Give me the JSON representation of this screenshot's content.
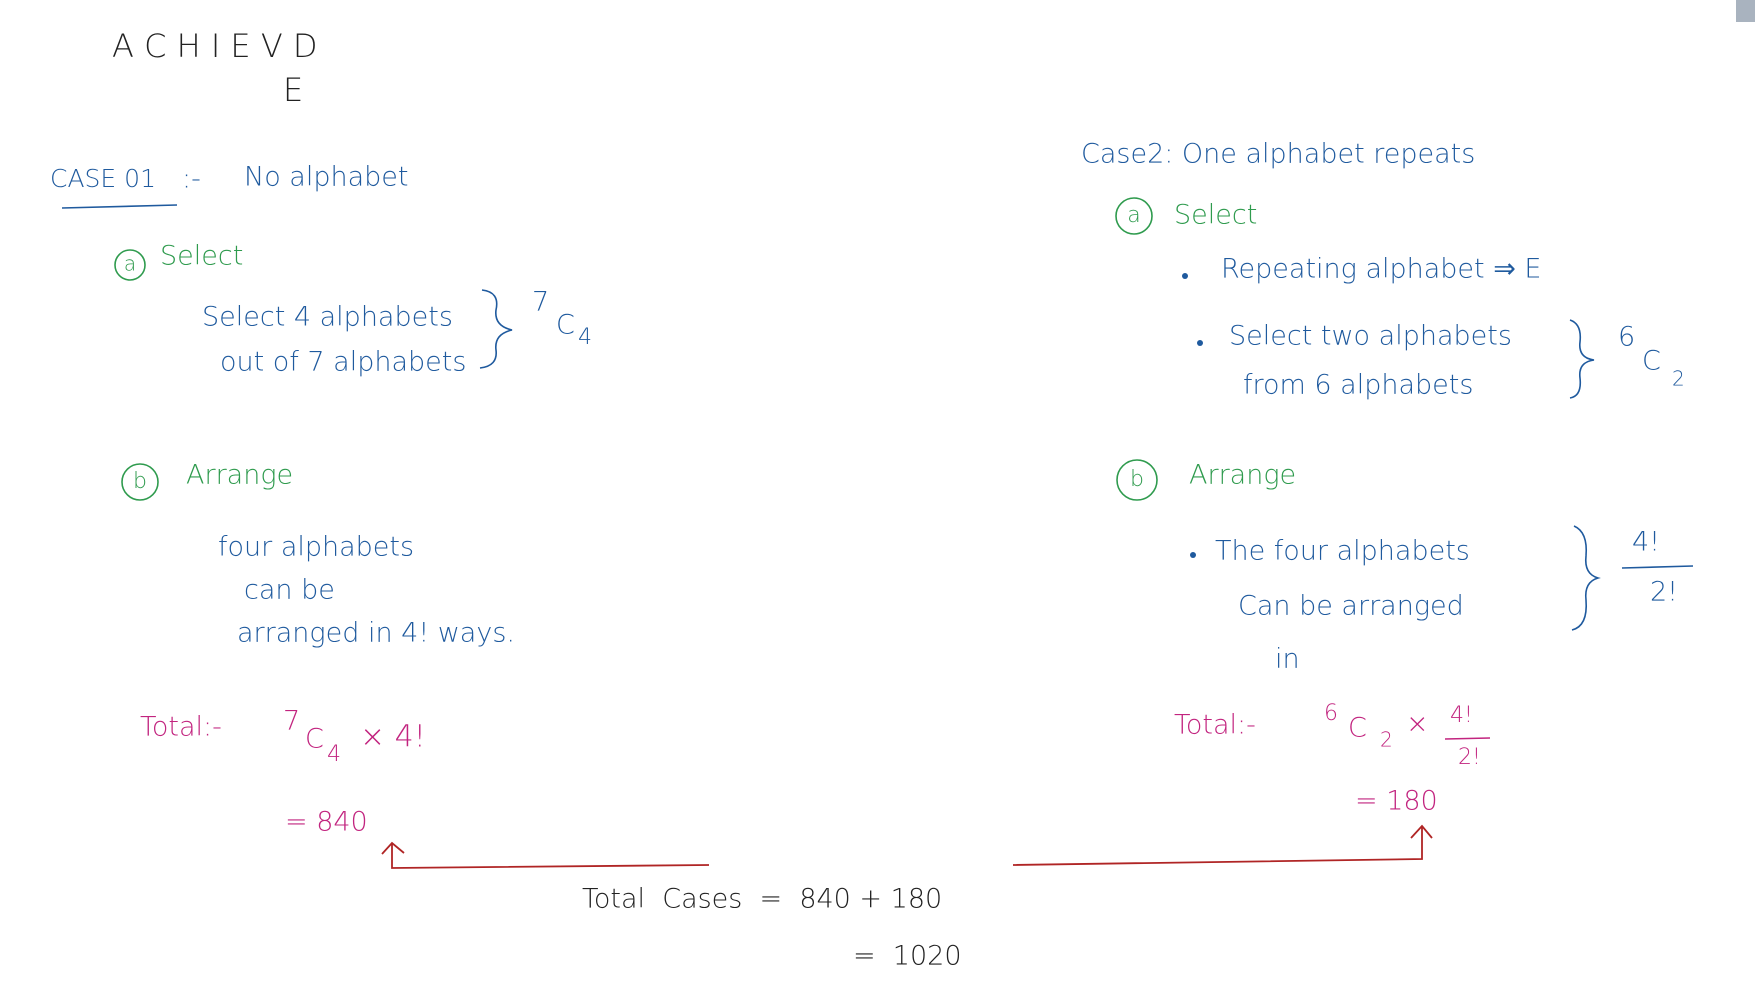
{
  "header": {
    "word": "A C H I E V D",
    "extra": "E"
  },
  "case1": {
    "title": "CASE 01",
    "separator": ":-",
    "subtitle": "No alphabet",
    "select": {
      "marker": "a",
      "label": "Select",
      "line1": "Select 4 alphabets",
      "line2": "out of 7 alphabets",
      "formula": {
        "sup": "7",
        "base": "C",
        "sub": "4"
      }
    },
    "arrange": {
      "marker": "b",
      "label": "Arrange",
      "line1": "four alphabets",
      "line2": "can be",
      "line3": "arranged in 4! ways."
    },
    "total": {
      "label": "Total:-",
      "sup": "7",
      "base": "C",
      "sub": "4",
      "rest": "× 4!",
      "result": "= 840"
    }
  },
  "case2": {
    "title": "Case2: One alphabet repeats",
    "select": {
      "marker": "a",
      "label": "Select",
      "bullet1": "Repeating alphabet ⇒ E",
      "bullet2_line1": "Select two alphabets",
      "bullet2_line2": "from 6 alphabets",
      "formula": {
        "sup": "6",
        "base": "C",
        "sub": "2"
      }
    },
    "arrange": {
      "marker": "b",
      "label": "Arrange",
      "line1": "The four alphabets",
      "line2": "Can be arranged",
      "line3": "in",
      "numerator": "4!",
      "denominator": "2!"
    },
    "total": {
      "label": "Total:-",
      "sup": "6",
      "base": "C",
      "sub": "2",
      "times": "×",
      "numerator": "4!",
      "denominator": "2!",
      "result": "= 180"
    }
  },
  "summary": {
    "line1": "Total  Cases  =  840 + 180",
    "line2": "=  1020"
  }
}
